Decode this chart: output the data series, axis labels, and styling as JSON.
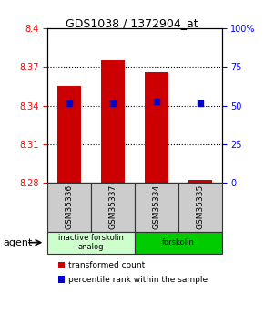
{
  "title": "GDS1038 / 1372904_at",
  "samples": [
    "GSM35336",
    "GSM35337",
    "GSM35334",
    "GSM35335"
  ],
  "bar_bottoms": [
    8.28,
    8.28,
    8.28,
    8.28
  ],
  "bar_tops": [
    8.355,
    8.375,
    8.366,
    8.282
  ],
  "percentile_values": [
    8.342,
    8.342,
    8.343,
    8.342
  ],
  "percentile_ranks": [
    50,
    50,
    50,
    50
  ],
  "ylim_left": [
    8.28,
    8.4
  ],
  "ylim_right": [
    0,
    100
  ],
  "yticks_left": [
    8.28,
    8.31,
    8.34,
    8.37,
    8.4
  ],
  "yticks_right": [
    0,
    25,
    50,
    75,
    100
  ],
  "ytick_labels_left": [
    "8.28",
    "8.31",
    "8.34",
    "8.37",
    "8.4"
  ],
  "ytick_labels_right": [
    "0",
    "25",
    "50",
    "75",
    "100%"
  ],
  "bar_color": "#cc0000",
  "percentile_color": "#0000cc",
  "grid_color": "#000000",
  "groups": [
    {
      "label": "inactive forskolin\nanalog",
      "start": 0,
      "end": 2,
      "color": "#ccffcc"
    },
    {
      "label": "forskolin",
      "start": 2,
      "end": 4,
      "color": "#00cc00"
    }
  ],
  "agent_label": "agent",
  "legend_items": [
    {
      "color": "#cc0000",
      "label": "transformed count"
    },
    {
      "color": "#0000cc",
      "label": "percentile rank within the sample"
    }
  ],
  "bar_width": 0.55,
  "sample_box_color": "#cccccc",
  "sample_box_border": "#333333"
}
